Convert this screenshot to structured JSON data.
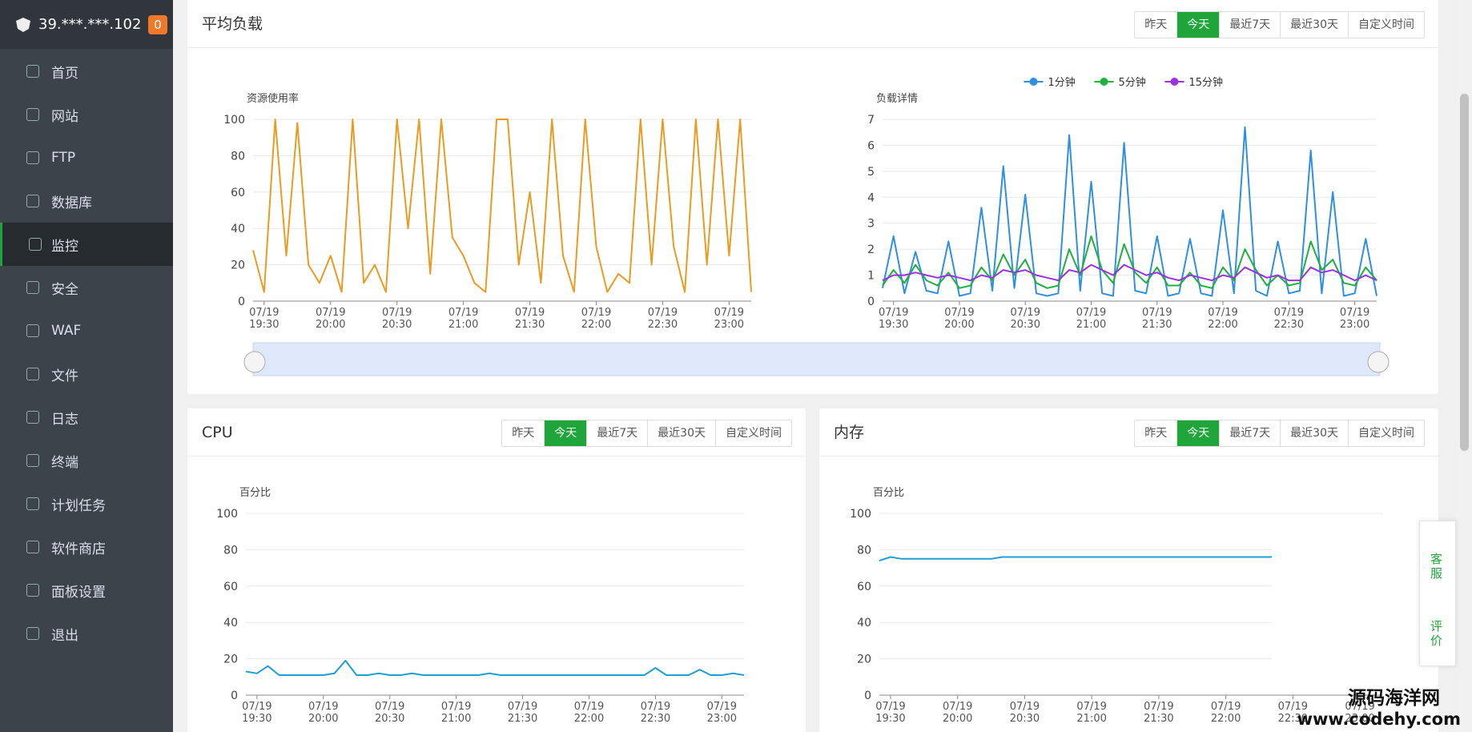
{
  "header": {
    "ip": "39.***.***.102",
    "badge": "0"
  },
  "menu": [
    "首页",
    "网站",
    "FTP",
    "数据库",
    "监控",
    "安全",
    "WAF",
    "文件",
    "日志",
    "终端",
    "计划任务",
    "软件商店",
    "面板设置",
    "退出"
  ],
  "active_menu": 4,
  "panels": [
    {
      "title": "平均负载",
      "buttons": [
        "昨天",
        "今天",
        "最近7天",
        "最近30天",
        "自定义时间"
      ],
      "active": 1
    },
    {
      "title": "CPU",
      "buttons": [
        "昨天",
        "今天",
        "最近7天",
        "最近30天",
        "自定义时间"
      ],
      "active": 1
    },
    {
      "title": "内存",
      "buttons": [
        "昨天",
        "今天",
        "最近7天",
        "最近30天",
        "自定义时间"
      ],
      "active": 1
    }
  ],
  "chart_data": [
    {
      "type": "line",
      "ylabel": "资源使用率",
      "ylim": [
        0,
        100
      ],
      "yticks": [
        0,
        20,
        40,
        60,
        80,
        100
      ],
      "grid": true,
      "x": [
        "07/19 19:25",
        "07/19 19:30",
        "07/19 19:35",
        "07/19 19:40",
        "07/19 19:45",
        "07/19 19:50",
        "07/19 19:55",
        "07/19 20:00",
        "07/19 20:05",
        "07/19 20:10",
        "07/19 20:15",
        "07/19 20:20",
        "07/19 20:25",
        "07/19 20:30",
        "07/19 20:35",
        "07/19 20:40",
        "07/19 20:45",
        "07/19 20:50",
        "07/19 20:55",
        "07/19 21:00",
        "07/19 21:05",
        "07/19 21:10",
        "07/19 21:15",
        "07/19 21:20",
        "07/19 21:25",
        "07/19 21:30",
        "07/19 21:35",
        "07/19 21:40",
        "07/19 21:45",
        "07/19 21:50",
        "07/19 21:55",
        "07/19 22:00",
        "07/19 22:05",
        "07/19 22:10",
        "07/19 22:15",
        "07/19 22:20",
        "07/19 22:25",
        "07/19 22:30",
        "07/19 22:35",
        "07/19 22:40",
        "07/19 22:45",
        "07/19 22:50",
        "07/19 22:55",
        "07/19 23:00",
        "07/19 23:05",
        "07/19 23:10"
      ],
      "xticks": [
        "07/19 19:30",
        "07/19 20:00",
        "07/19 20:30",
        "07/19 21:00",
        "07/19 21:30",
        "07/19 22:00",
        "07/19 22:30",
        "07/19 23:00"
      ],
      "series": [
        {
          "color": "#eb9a22",
          "values": [
            28,
            5,
            100,
            25,
            98,
            20,
            10,
            25,
            5,
            100,
            10,
            20,
            5,
            100,
            40,
            100,
            15,
            100,
            35,
            25,
            10,
            5,
            100,
            100,
            20,
            60,
            10,
            100,
            25,
            5,
            100,
            30,
            5,
            15,
            10,
            100,
            20,
            100,
            30,
            5,
            100,
            20,
            100,
            25,
            100,
            5
          ]
        }
      ]
    },
    {
      "type": "line",
      "ylabel": "负载详情",
      "ylim": [
        0,
        7
      ],
      "yticks": [
        0,
        1,
        2,
        3,
        4,
        5,
        6,
        7
      ],
      "grid": true,
      "legend": "top",
      "x": [
        "07/19 19:25",
        "07/19 19:30",
        "07/19 19:35",
        "07/19 19:40",
        "07/19 19:45",
        "07/19 19:50",
        "07/19 19:55",
        "07/19 20:00",
        "07/19 20:05",
        "07/19 20:10",
        "07/19 20:15",
        "07/19 20:20",
        "07/19 20:25",
        "07/19 20:30",
        "07/19 20:35",
        "07/19 20:40",
        "07/19 20:45",
        "07/19 20:50",
        "07/19 20:55",
        "07/19 21:00",
        "07/19 21:05",
        "07/19 21:10",
        "07/19 21:15",
        "07/19 21:20",
        "07/19 21:25",
        "07/19 21:30",
        "07/19 21:35",
        "07/19 21:40",
        "07/19 21:45",
        "07/19 21:50",
        "07/19 21:55",
        "07/19 22:00",
        "07/19 22:05",
        "07/19 22:10",
        "07/19 22:15",
        "07/19 22:20",
        "07/19 22:25",
        "07/19 22:30",
        "07/19 22:35",
        "07/19 22:40",
        "07/19 22:45",
        "07/19 22:50",
        "07/19 22:55",
        "07/19 23:00",
        "07/19 23:05",
        "07/19 23:10"
      ],
      "xticks": [
        "07/19 19:30",
        "07/19 20:00",
        "07/19 20:30",
        "07/19 21:00",
        "07/19 21:30",
        "07/19 22:00",
        "07/19 22:30",
        "07/19 23:00"
      ],
      "series": [
        {
          "name": "1分钟",
          "color": "#2f8fe0",
          "values": [
            0.5,
            2.5,
            0.3,
            1.9,
            0.4,
            0.3,
            2.3,
            0.2,
            0.3,
            3.6,
            0.4,
            5.2,
            0.5,
            4.1,
            0.3,
            0.2,
            0.3,
            6.4,
            0.4,
            4.6,
            0.3,
            0.2,
            6.1,
            0.4,
            0.3,
            2.5,
            0.2,
            0.3,
            2.4,
            0.3,
            0.2,
            3.5,
            0.3,
            6.7,
            0.4,
            0.2,
            2.3,
            0.3,
            0.4,
            5.8,
            0.3,
            4.2,
            0.2,
            0.3,
            2.4,
            0.2
          ]
        },
        {
          "name": "5分钟",
          "color": "#1fb040",
          "values": [
            0.6,
            1.2,
            0.7,
            1.4,
            0.8,
            0.6,
            1.1,
            0.5,
            0.6,
            1.3,
            0.8,
            1.8,
            1.0,
            1.6,
            0.7,
            0.5,
            0.6,
            2.0,
            1.0,
            2.5,
            1.2,
            0.7,
            2.2,
            1.1,
            0.7,
            1.3,
            0.6,
            0.6,
            1.1,
            0.6,
            0.5,
            1.3,
            0.8,
            2.0,
            1.2,
            0.6,
            1.0,
            0.6,
            0.7,
            2.3,
            1.2,
            1.6,
            0.7,
            0.6,
            1.3,
            0.8
          ]
        },
        {
          "name": "15分钟",
          "color": "#9932e0",
          "values": [
            0.8,
            1.0,
            1.0,
            1.1,
            1.0,
            0.9,
            1.0,
            0.9,
            0.8,
            1.0,
            0.9,
            1.2,
            1.1,
            1.2,
            1.0,
            0.9,
            0.8,
            1.2,
            1.1,
            1.4,
            1.2,
            1.0,
            1.4,
            1.2,
            1.0,
            1.1,
            0.9,
            0.8,
            1.0,
            0.9,
            0.8,
            1.0,
            0.9,
            1.3,
            1.1,
            0.9,
            1.0,
            0.8,
            0.8,
            1.3,
            1.1,
            1.2,
            1.0,
            0.8,
            1.0,
            0.8
          ]
        }
      ]
    },
    {
      "type": "line",
      "ylabel": "百分比",
      "ylim": [
        0,
        100
      ],
      "yticks": [
        0,
        20,
        40,
        60,
        80,
        100
      ],
      "grid": true,
      "x": [
        "07/19 19:25",
        "07/19 19:30",
        "07/19 19:35",
        "07/19 19:40",
        "07/19 19:45",
        "07/19 19:50",
        "07/19 19:55",
        "07/19 20:00",
        "07/19 20:05",
        "07/19 20:10",
        "07/19 20:15",
        "07/19 20:20",
        "07/19 20:25",
        "07/19 20:30",
        "07/19 20:35",
        "07/19 20:40",
        "07/19 20:45",
        "07/19 20:50",
        "07/19 20:55",
        "07/19 21:00",
        "07/19 21:05",
        "07/19 21:10",
        "07/19 21:15",
        "07/19 21:20",
        "07/19 21:25",
        "07/19 21:30",
        "07/19 21:35",
        "07/19 21:40",
        "07/19 21:45",
        "07/19 21:50",
        "07/19 21:55",
        "07/19 22:00",
        "07/19 22:05",
        "07/19 22:10",
        "07/19 22:15",
        "07/19 22:20",
        "07/19 22:25",
        "07/19 22:30",
        "07/19 22:35",
        "07/19 22:40",
        "07/19 22:45",
        "07/19 22:50",
        "07/19 22:55",
        "07/19 23:00",
        "07/19 23:05",
        "07/19 23:10"
      ],
      "xticks": [
        "07/19 19:30",
        "07/19 20:00",
        "07/19 20:30",
        "07/19 21:00",
        "07/19 21:30",
        "07/19 22:00",
        "07/19 22:30",
        "07/19 23:00"
      ],
      "series": [
        {
          "color": "#1e9fd6",
          "values": [
            13,
            12,
            16,
            11,
            11,
            11,
            11,
            11,
            12,
            19,
            11,
            11,
            12,
            11,
            11,
            12,
            11,
            11,
            11,
            11,
            11,
            11,
            12,
            11,
            11,
            11,
            11,
            11,
            11,
            11,
            11,
            11,
            11,
            11,
            11,
            11,
            11,
            15,
            11,
            11,
            11,
            14,
            11,
            11,
            12,
            11
          ]
        }
      ]
    },
    {
      "type": "line",
      "ylabel": "百分比",
      "ylim": [
        0,
        100
      ],
      "yticks": [
        0,
        20,
        40,
        60,
        80,
        100
      ],
      "grid": true,
      "x": [
        "07/19 19:25",
        "07/19 19:30",
        "07/19 19:35",
        "07/19 19:40",
        "07/19 19:45",
        "07/19 19:50",
        "07/19 19:55",
        "07/19 20:00",
        "07/19 20:05",
        "07/19 20:10",
        "07/19 20:15",
        "07/19 20:20",
        "07/19 20:25",
        "07/19 20:30",
        "07/19 20:35",
        "07/19 20:40",
        "07/19 20:45",
        "07/19 20:50",
        "07/19 20:55",
        "07/19 21:00",
        "07/19 21:05",
        "07/19 21:10",
        "07/19 21:15",
        "07/19 21:20",
        "07/19 21:25",
        "07/19 21:30",
        "07/19 21:35",
        "07/19 21:40",
        "07/19 21:45",
        "07/19 21:50",
        "07/19 21:55",
        "07/19 22:00",
        "07/19 22:05",
        "07/19 22:10",
        "07/19 22:15",
        "07/19 22:20",
        "07/19 22:25",
        "07/19 22:30",
        "07/19 22:35",
        "07/19 22:40",
        "07/19 22:45",
        "07/19 22:50",
        "07/19 22:55",
        "07/19 23:00",
        "07/19 23:05",
        "07/19 23:10"
      ],
      "xticks": [
        "07/19 19:30",
        "07/19 20:00",
        "07/19 20:30",
        "07/19 21:00",
        "07/19 21:30",
        "07/19 22:00",
        "07/19 22:30",
        "07/19 23:00"
      ],
      "series": [
        {
          "color": "#1e9fd6",
          "values": [
            74,
            76,
            75,
            75,
            75,
            75,
            75,
            75,
            75,
            75,
            75,
            76,
            76,
            76,
            76,
            76,
            76,
            76,
            76,
            76,
            76,
            76,
            76,
            76,
            76,
            76,
            76,
            76,
            76,
            76,
            76,
            76,
            76,
            76,
            76,
            76,
            77,
            null,
            null,
            null,
            null,
            null,
            null,
            null,
            null,
            null
          ]
        }
      ]
    }
  ],
  "widget": [
    "客服",
    "评价"
  ],
  "watermark": [
    "源码海洋网",
    "www.codehy.com"
  ]
}
